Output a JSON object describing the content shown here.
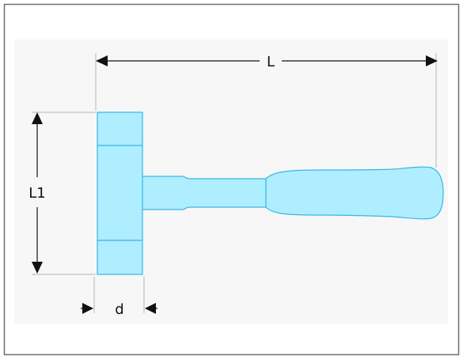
{
  "dimensions": {
    "length": "L",
    "head_length": "L1",
    "head_diameter": "d"
  },
  "colors": {
    "frame_border": "#6e6e6e",
    "panel_background": "#f7f7f7",
    "hammer_fill": "#aeeefe",
    "hammer_outline": "#3ab4e8",
    "dimension_line": "#111111",
    "extension_line": "#b5b5b5"
  },
  "icon": "dead-blow-hammer-dimension-drawing"
}
